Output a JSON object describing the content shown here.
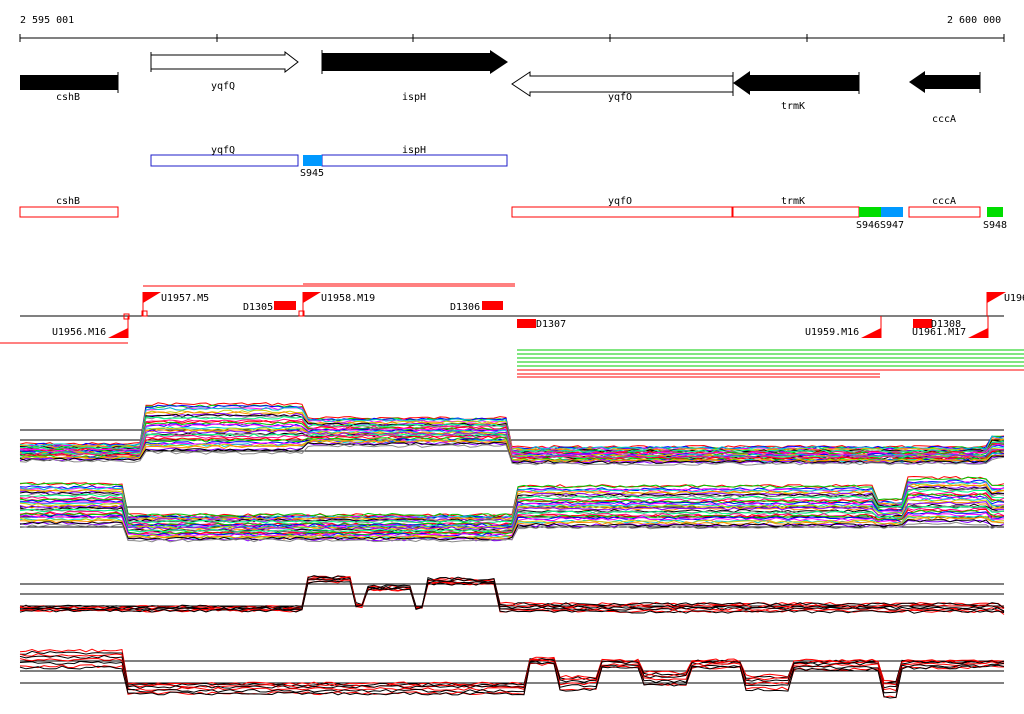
{
  "colors": {
    "black": "#000000",
    "red": "#ff0000",
    "blue": "#1e1ec8",
    "cyan": "#0099ff",
    "green": "#00dd00",
    "line_green": "#00cc00"
  },
  "ruler": {
    "start_label": "2 595 001",
    "end_label": "2 600 000"
  },
  "genes": [
    {
      "label": "cshB",
      "direction": "right",
      "filled": true
    },
    {
      "label": "yqfQ",
      "direction": "right",
      "filled": false
    },
    {
      "label": "ispH",
      "direction": "right",
      "filled": true
    },
    {
      "label": "yqfO",
      "direction": "left",
      "filled": false
    },
    {
      "label": "trmK",
      "direction": "left",
      "filled": true
    },
    {
      "label": "cccA",
      "direction": "left",
      "filled": true
    }
  ],
  "blue_segments": [
    {
      "label": "yqfQ"
    },
    {
      "label": "ispH"
    }
  ],
  "blue_markers": [
    {
      "label": "S945"
    }
  ],
  "red_segments": [
    {
      "label": "cshB"
    },
    {
      "label": "yqfO"
    },
    {
      "label": "trmK"
    },
    {
      "label": "cccA"
    }
  ],
  "red_markers": [
    {
      "label": "S946",
      "color": "green"
    },
    {
      "label": "S947",
      "color": "cyan"
    },
    {
      "label": "S948",
      "color": "green"
    }
  ],
  "upshifts": [
    {
      "label": "U1956.M16"
    },
    {
      "label": "U1957.M5"
    },
    {
      "label": "U1958.M19"
    },
    {
      "label": "U1959.M16"
    },
    {
      "label": "U1961.M17"
    },
    {
      "label": "U196"
    }
  ],
  "downshifts": [
    {
      "label": "D1305"
    },
    {
      "label": "D1306"
    },
    {
      "label": "D1307"
    },
    {
      "label": "D1308"
    }
  ],
  "panels": [
    {
      "name": "forward-strand-conditions"
    },
    {
      "name": "reverse-strand-conditions"
    },
    {
      "name": "forward-strand-selected"
    },
    {
      "name": "reverse-strand-selected"
    }
  ]
}
